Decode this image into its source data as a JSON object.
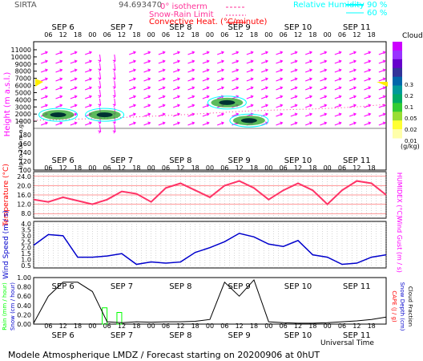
{
  "header": {
    "station": "SIRTA",
    "coords": "94.693470",
    "legend_isotherm": "0° isotherm",
    "legend_snowrain": "Snow-Rain Limit",
    "legend_convective": "Convective Heat. (°C/minute)",
    "legend_rh": "Relative Humidity",
    "rh_90": "90 %",
    "rh_60": "60 %"
  },
  "footer": {
    "title": "Modele Atmospherique LMDZ / Forecast starting on 20200906 at 0hUT",
    "universal_time": "Universal Time"
  },
  "days": [
    "SEP 6",
    "SEP 7",
    "SEP 8",
    "SEP 9",
    "SEP 10",
    "SEP 11"
  ],
  "hour_ticks": [
    "06",
    "12",
    "18",
    "00",
    "06",
    "12",
    "18",
    "00",
    "06",
    "12",
    "18",
    "00",
    "06",
    "12",
    "18",
    "00",
    "06",
    "12",
    "18",
    "00",
    "06",
    "12",
    "18"
  ],
  "colors": {
    "magenta": "#ff00ff",
    "red": "#ff0000",
    "pink": "#ff3399",
    "cyan": "#00ffff",
    "blue": "#0000cc",
    "black": "#000000",
    "green": "#00ff00",
    "yellow": "#ffff00"
  },
  "clouds_legend": {
    "title": "Clouds",
    "unit": "(g/kg)",
    "ticks": [
      "0.3",
      "0.2",
      "0.1",
      "0.05",
      "0.02",
      "0.01"
    ],
    "colors": [
      "#cc00ff",
      "#9933ff",
      "#6600cc",
      "#333399",
      "#0066aa",
      "#009999",
      "#00aa66",
      "#33cc33",
      "#99dd33",
      "#ffff33",
      "#ffffaa"
    ]
  },
  "chart_data": [
    {
      "type": "heatmap",
      "panel": "clouds_and_wind",
      "ylabel": "Height (m a.s.l.)",
      "ylabel2": "Up to 200 m a.g.l.",
      "y_ticks_upper": [
        11000,
        10000,
        9000,
        8000,
        7000,
        6000,
        5000,
        4000,
        3000,
        2000,
        1000
      ],
      "y_ticks_lower": [
        180,
        160,
        140,
        120,
        100
      ],
      "cloud_blobs": [
        {
          "x_hour": 10,
          "z": 1900,
          "level": 0.1
        },
        {
          "x_hour": 29,
          "z": 1900,
          "level": 0.2
        },
        {
          "x_hour": 79,
          "z": 3600,
          "level": 0.1
        },
        {
          "x_hour": 88,
          "z": 1100,
          "level": 0.1
        }
      ]
    },
    {
      "type": "line",
      "panel": "temperature",
      "ylabel": "Temperature (°C)",
      "ylabel2": "HUMIDEX (°C)",
      "y_ticks": [
        "24.0",
        "20.0",
        "16.0",
        "12.0",
        "8.0"
      ],
      "ylim": [
        6,
        26
      ],
      "x_hours": [
        0,
        6,
        12,
        18,
        24,
        30,
        36,
        42,
        48,
        54,
        60,
        66,
        72,
        78,
        84,
        90,
        96,
        102,
        108,
        114,
        120,
        126,
        132,
        138,
        144
      ],
      "series": [
        {
          "values": [
            14,
            13,
            15,
            13.5,
            12,
            14,
            17.5,
            16.5,
            13,
            19,
            21,
            18,
            15,
            20,
            22,
            19,
            14,
            18,
            21,
            18,
            12,
            18,
            22,
            21,
            16
          ]
        }
      ]
    },
    {
      "type": "line",
      "panel": "wind",
      "ylabel": "Wind Speed (m / s)",
      "ylabel2": "Wind Gust (m / s)",
      "y_ticks": [
        "4.0",
        "3.5",
        "3.0",
        "2.5",
        "2.0",
        "1.5",
        "1.0",
        "0.5"
      ],
      "ylim": [
        0.3,
        4.2
      ],
      "x_hours": [
        0,
        6,
        12,
        18,
        24,
        30,
        36,
        42,
        48,
        54,
        60,
        66,
        72,
        78,
        84,
        90,
        96,
        102,
        108,
        114,
        120,
        126,
        132,
        138,
        144
      ],
      "series": [
        {
          "values": [
            2.2,
            3.1,
            3.0,
            1.2,
            1.2,
            1.3,
            1.5,
            0.6,
            0.8,
            0.7,
            0.8,
            1.6,
            2.0,
            2.5,
            3.2,
            2.9,
            2.3,
            2.1,
            2.6,
            1.4,
            1.2,
            0.6,
            0.7,
            1.2,
            1.4
          ]
        }
      ]
    },
    {
      "type": "line",
      "panel": "precipitation",
      "ylabel": "Rain (mm / hour)",
      "ylabel2": "Snow (cm / hour)",
      "ylabel3": "CAPE (J / g)",
      "ylabel4": "Snow Depth (cm)",
      "ylabel5": "Cloud Fraction",
      "y_ticks": [
        "1.00",
        "0.80",
        "0.60",
        "0.40",
        "0.20",
        "0.00"
      ],
      "ylim": [
        0,
        1
      ],
      "x_hours": [
        0,
        6,
        12,
        18,
        24,
        30,
        36,
        42,
        48,
        54,
        60,
        66,
        72,
        78,
        84,
        90,
        96,
        102,
        108,
        114,
        120,
        126,
        132,
        138,
        144
      ],
      "series": [
        {
          "values": [
            0.02,
            0.6,
            0.9,
            0.9,
            0.7,
            0.05,
            0.03,
            0.05,
            0.04,
            0.05,
            0.05,
            0.06,
            0.1,
            0.9,
            0.6,
            0.95,
            0.05,
            0.03,
            0.02,
            0.02,
            0.03,
            0.05,
            0.07,
            0.1,
            0.15
          ]
        }
      ],
      "rain_bars": [
        {
          "x_hour": 29,
          "value": 0.35
        },
        {
          "x_hour": 35,
          "value": 0.25
        }
      ]
    }
  ]
}
